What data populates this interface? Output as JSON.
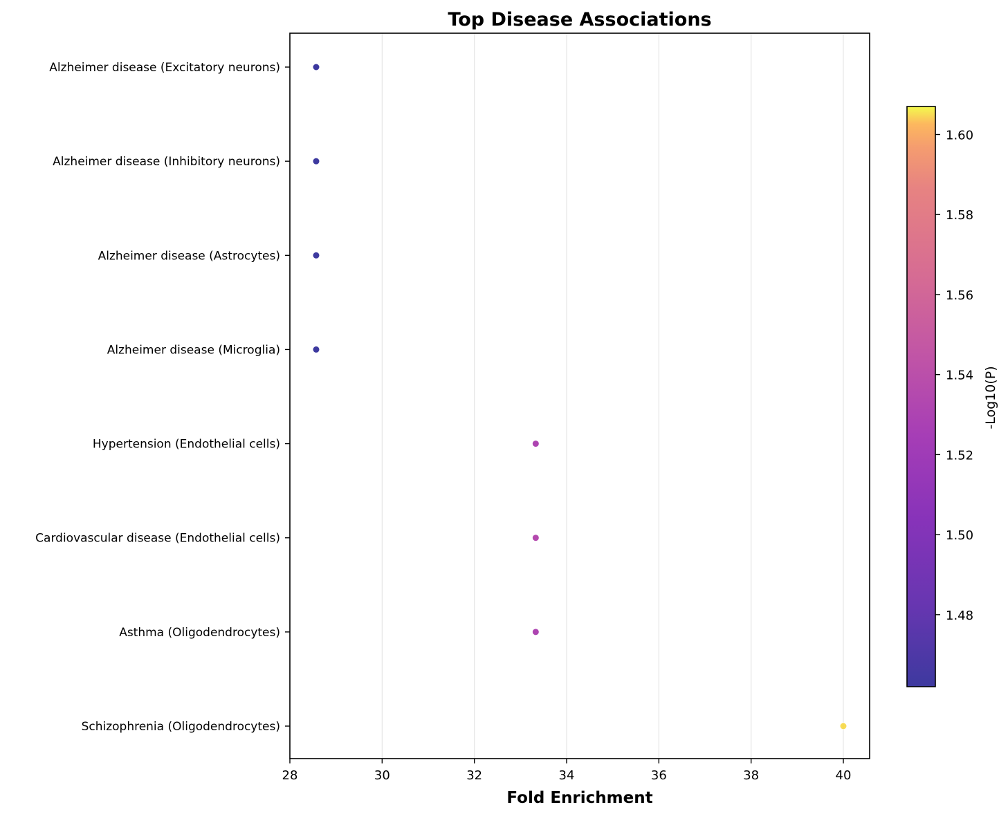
{
  "chart_data": {
    "type": "scatter",
    "title": "Top Disease Associations",
    "xlabel": "Fold Enrichment",
    "ylabel": "",
    "xlim": [
      28,
      40.57
    ],
    "x_ticks": [
      "28",
      "30",
      "32",
      "34",
      "36",
      "38",
      "40"
    ],
    "grid": "vertical",
    "categories": [
      "Alzheimer disease (Excitatory neurons)",
      "Alzheimer disease (Inhibitory neurons)",
      "Alzheimer disease (Astrocytes)",
      "Alzheimer disease (Microglia)",
      "Hypertension (Endothelial cells)",
      "Cardiovascular disease (Endothelial cells)",
      "Asthma (Oligodendrocytes)",
      "Schizophrenia (Oligodendrocytes)"
    ],
    "x": [
      28.57,
      28.57,
      28.57,
      28.57,
      33.33,
      33.33,
      33.33,
      40.0
    ],
    "color_values": [
      1.462,
      1.462,
      1.462,
      1.462,
      1.53,
      1.535,
      1.53,
      1.605
    ],
    "colorbar": {
      "label": "-Log10(P)",
      "colormap": "plasma",
      "range": [
        1.462,
        1.607
      ],
      "ticks": [
        "1.48",
        "1.50",
        "1.52",
        "1.54",
        "1.56",
        "1.58",
        "1.60"
      ]
    },
    "colors": {
      "low": "#0d0887",
      "high": "#f0f921",
      "grid": "#e5e5e5"
    }
  }
}
